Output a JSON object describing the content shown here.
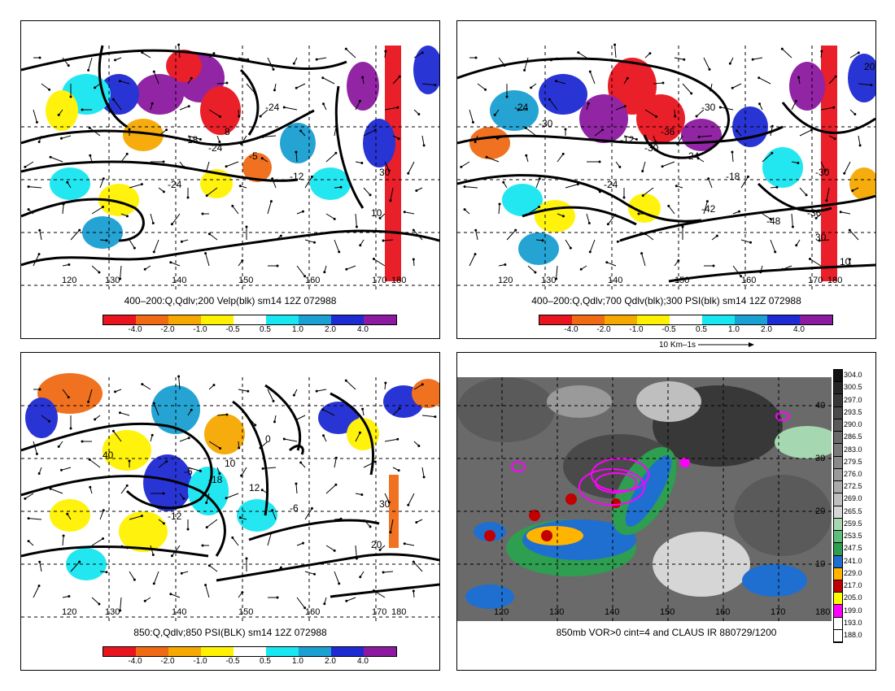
{
  "panels": [
    {
      "title": "400–200:Q,Qdlv;200 Velp(blk) sm14 12Z 072988",
      "lon_labels": [
        "120",
        "130",
        "140",
        "150",
        "160",
        "170",
        "180"
      ],
      "contour_labels": [
        "-24",
        "-24",
        "-12",
        "-18",
        "-24",
        "-5",
        "8",
        "10",
        "30"
      ],
      "colorbar": [
        "-4.0",
        "-2.0",
        "-1.0",
        "-0.5",
        "0.5",
        "1.0",
        "2.0",
        "4.0"
      ]
    },
    {
      "title": "400–200:Q,Qdlv;700 Qdlv(blk);300 PSI(blk) sm14 12Z 072988",
      "lon_labels": [
        "120",
        "130",
        "140",
        "150",
        "160",
        "170",
        "180"
      ],
      "contour_labels": [
        "-30",
        "-24",
        "-18",
        "-12",
        "-30",
        "-24",
        "-36",
        "-36",
        "-30",
        "-30",
        "-24",
        "-42",
        "-48",
        "10",
        "20",
        "30"
      ],
      "colorbar": [
        "-4.0",
        "-2.0",
        "-1.0",
        "-0.5",
        "0.5",
        "1.0",
        "2.0",
        "4.0"
      ],
      "vector_scale": "10 Km–1s"
    },
    {
      "title": "850:Q,Qdlv;850 PSI(BLK) sm14 12Z 072988",
      "lon_labels": [
        "120",
        "130",
        "140",
        "150",
        "160",
        "170",
        "180"
      ],
      "contour_labels": [
        "-18",
        "-12",
        "-6",
        "-6",
        "0",
        "12",
        "10",
        "20",
        "30",
        "40"
      ],
      "colorbar": [
        "-4.0",
        "-2.0",
        "-1.0",
        "-0.5",
        "0.5",
        "1.0",
        "2.0",
        "4.0"
      ]
    },
    {
      "title": "850mb VOR>0 cint=4 and CLAUS IR 880729/1200",
      "lon_labels": [
        "120",
        "130",
        "140",
        "150",
        "160",
        "170",
        "180"
      ],
      "lat_labels": [
        "40",
        "30",
        "20",
        "10"
      ],
      "ir_scale": [
        "304.0",
        "300.5",
        "297.0",
        "293.5",
        "290.0",
        "286.5",
        "283.0",
        "279.5",
        "276.0",
        "272.5",
        "269.0",
        "265.5",
        "259.5",
        "253.5",
        "247.5",
        "241.0",
        "229.0",
        "217.0",
        "205.0",
        "199.0",
        "193.0",
        "188.0"
      ]
    }
  ],
  "colors": {
    "cbar": [
      "#e8141e",
      "#f06a14",
      "#f5a800",
      "#fff200",
      "#ffffff",
      "#18e6f0",
      "#1aa0d2",
      "#1e2ad2",
      "#8c1aa0"
    ],
    "ir": [
      "#111111",
      "#262626",
      "#383838",
      "#4a4a4a",
      "#5a5a5a",
      "#6a6a6a",
      "#7a7a7a",
      "#8a8a8a",
      "#9a9a9a",
      "#ababab",
      "#bfbfbf",
      "#d6d6d6",
      "#a5d8b0",
      "#5fbf7a",
      "#2e9e50",
      "#1f6fd0",
      "#ffb400",
      "#c20000",
      "#ffff00",
      "#ff00ff",
      "#ffffff",
      "#ffffff"
    ]
  }
}
